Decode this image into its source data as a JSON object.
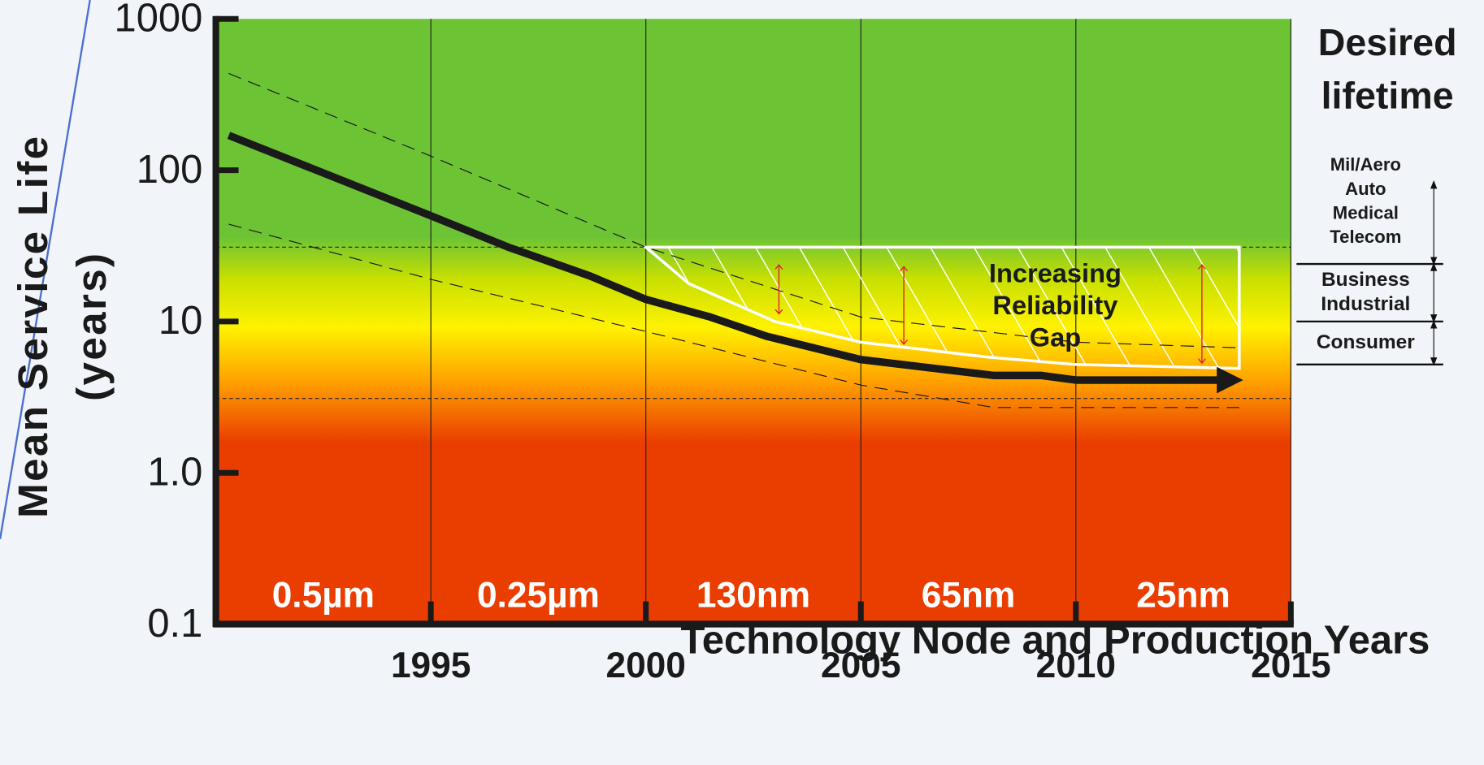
{
  "chart_data": {
    "type": "line",
    "xlabel": "Technology Node and Production Years",
    "ylabel": [
      "Mean Service Life",
      "(years)"
    ],
    "log_y": true,
    "xlim": [
      1990,
      2015
    ],
    "xticks": [
      1995,
      2000,
      2005,
      2010,
      2015
    ],
    "ylim": [
      0.1,
      1000
    ],
    "yticks": [
      0.1,
      {
        "value": 1,
        "label": "1.0"
      },
      10,
      100,
      1000
    ],
    "grid_x": true,
    "nodes": [
      "0.5µm",
      "0.25µm",
      "130nm",
      "65nm",
      "25nm"
    ],
    "series": [
      {
        "color": "#1a1a1a",
        "width": 8,
        "arrow": true,
        "x": [
          1990.3,
          1995,
          1996.8,
          1998.7,
          2000,
          2001.5,
          2002.8,
          2005,
          2008.1,
          2009.2,
          2010,
          2013.4
        ],
        "values": [
          170,
          50,
          31,
          20,
          14,
          10.7,
          8,
          5.6,
          4.4,
          4.4,
          4.1,
          4.1
        ]
      },
      {
        "color": "#1a1a1a",
        "width": 1,
        "dash": "14 8",
        "x": [
          1990.3,
          1995,
          2000,
          2005,
          2010,
          2013.8
        ],
        "values": [
          436,
          124,
          31,
          10.7,
          7.3,
          6.7
        ]
      },
      {
        "color": "#1a1a1a",
        "width": 1,
        "dash": "14 8",
        "x": [
          1990.3,
          1995,
          2000,
          2005,
          2008.1,
          2013.8
        ],
        "values": [
          44,
          19,
          8.6,
          3.8,
          2.7,
          2.7
        ]
      }
    ],
    "reference_lines": [
      31,
      3.1
    ],
    "gap": {
      "x": [
        2000,
        2001,
        2003,
        2005,
        2008,
        2010,
        2013.8
      ],
      "lower": [
        31,
        17.8,
        10,
        7.3,
        5.8,
        5.2,
        4.9
      ],
      "top": 31
    },
    "annotation": [
      "Increasing",
      "Reliability",
      "Gap"
    ],
    "lifetime_title": [
      "Desired",
      "lifetime"
    ],
    "lifetime_bands": [
      {
        "lines": [
          "Mil/Aero",
          "Auto",
          "Medical",
          "Telecom"
        ],
        "range": [
          24,
          84
        ]
      },
      {
        "lines": [
          "Business",
          "Industrial"
        ],
        "range": [
          10,
          24
        ]
      },
      {
        "lines": [
          "Consumer"
        ],
        "range": [
          5.2,
          10
        ]
      }
    ]
  }
}
